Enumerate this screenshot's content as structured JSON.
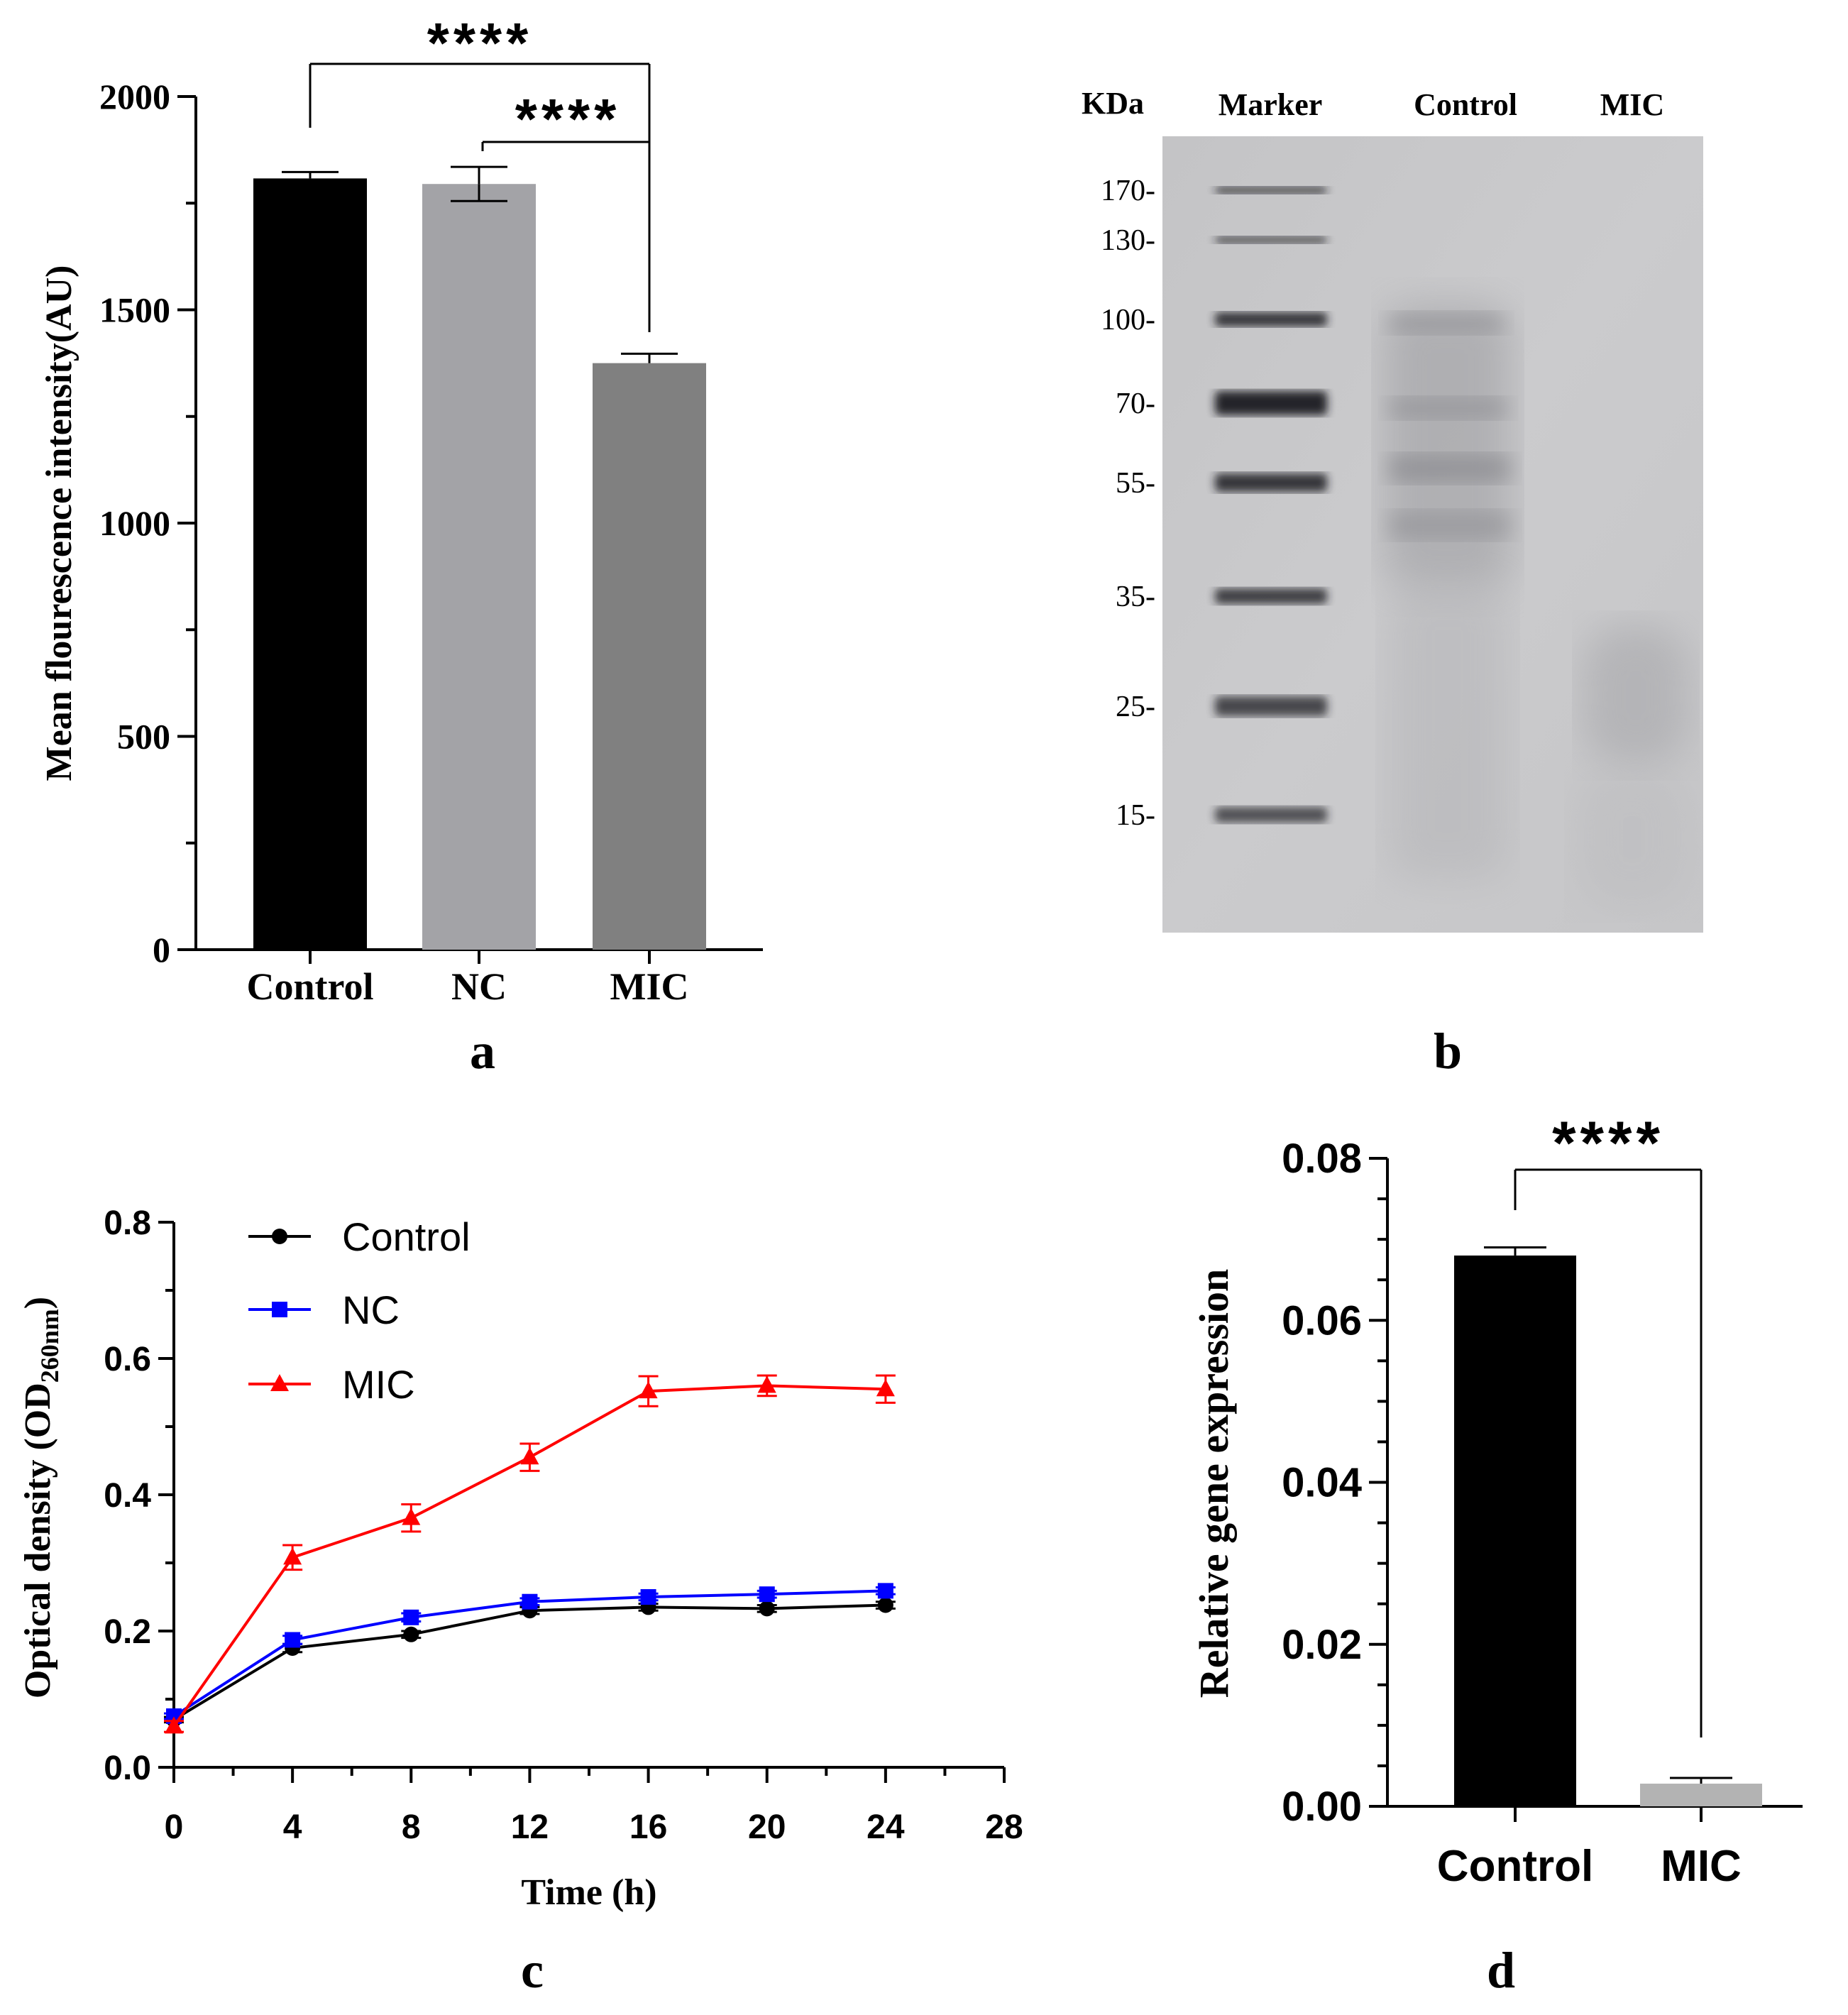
{
  "panels": [
    {
      "label": "a"
    },
    {
      "label": "b"
    },
    {
      "label": "c"
    },
    {
      "label": "d"
    }
  ],
  "chart_data": [
    {
      "panel": "a",
      "type": "bar",
      "ylabel": "Mean flourescence intensity(AU)",
      "ylim": [
        0,
        2000
      ],
      "yticks": [
        0,
        500,
        1000,
        1500,
        2000
      ],
      "categories": [
        "Control",
        "NC",
        "MIC"
      ],
      "values": [
        1808,
        1795,
        1375
      ],
      "errors": [
        15,
        40,
        22
      ],
      "colors": [
        "#000000",
        "#a3a3a7",
        "#808080"
      ],
      "significance": [
        {
          "from": "Control",
          "to": "MIC",
          "label": "****"
        },
        {
          "from": "NC",
          "to": "MIC",
          "label": "****"
        }
      ]
    },
    {
      "panel": "b",
      "type": "gel",
      "unit_label": "KDa",
      "lanes": [
        "Marker",
        "Control",
        "MIC"
      ],
      "markers": [
        170,
        130,
        100,
        70,
        55,
        35,
        25,
        15
      ]
    },
    {
      "panel": "c",
      "type": "line",
      "xlabel": "Time (h)",
      "ylabel": "Optical density (OD",
      "ylabel_sub": "260nm",
      "ylabel_end": ")",
      "xlim": [
        0,
        28
      ],
      "xticks": [
        0,
        4,
        8,
        12,
        16,
        20,
        24,
        28
      ],
      "ylim": [
        0,
        0.8
      ],
      "yticks": [
        "0.0",
        "0.2",
        "0.4",
        "0.6",
        "0.8"
      ],
      "x": [
        0,
        4,
        8,
        12,
        16,
        20,
        24
      ],
      "series": [
        {
          "name": "Control",
          "color": "#000000",
          "marker": "circle",
          "values": [
            0.07,
            0.175,
            0.195,
            0.23,
            0.235,
            0.233,
            0.238
          ],
          "errors": [
            0.004,
            0.006,
            0.005,
            0.005,
            0.005,
            0.005,
            0.005
          ]
        },
        {
          "name": "NC",
          "color": "#0000ff",
          "marker": "square",
          "values": [
            0.075,
            0.187,
            0.22,
            0.243,
            0.25,
            0.254,
            0.259
          ],
          "errors": [
            0.004,
            0.006,
            0.006,
            0.005,
            0.005,
            0.005,
            0.005
          ]
        },
        {
          "name": "MIC",
          "color": "#ff0000",
          "marker": "triangle",
          "values": [
            0.06,
            0.308,
            0.366,
            0.455,
            0.552,
            0.56,
            0.555
          ],
          "errors": [
            0.008,
            0.018,
            0.02,
            0.02,
            0.022,
            0.015,
            0.02
          ]
        }
      ]
    },
    {
      "panel": "d",
      "type": "bar",
      "ylabel": "Relative gene expression",
      "ylim": [
        0,
        0.08
      ],
      "yticks": [
        "0.00",
        "0.02",
        "0.04",
        "0.06",
        "0.08"
      ],
      "categories": [
        "Control",
        "MIC"
      ],
      "values": [
        0.068,
        0.0028
      ],
      "errors": [
        0.001,
        0.0007
      ],
      "colors": [
        "#000000",
        "#b3b3b3"
      ],
      "significance": [
        {
          "from": "Control",
          "to": "MIC",
          "label": "****"
        }
      ]
    }
  ]
}
